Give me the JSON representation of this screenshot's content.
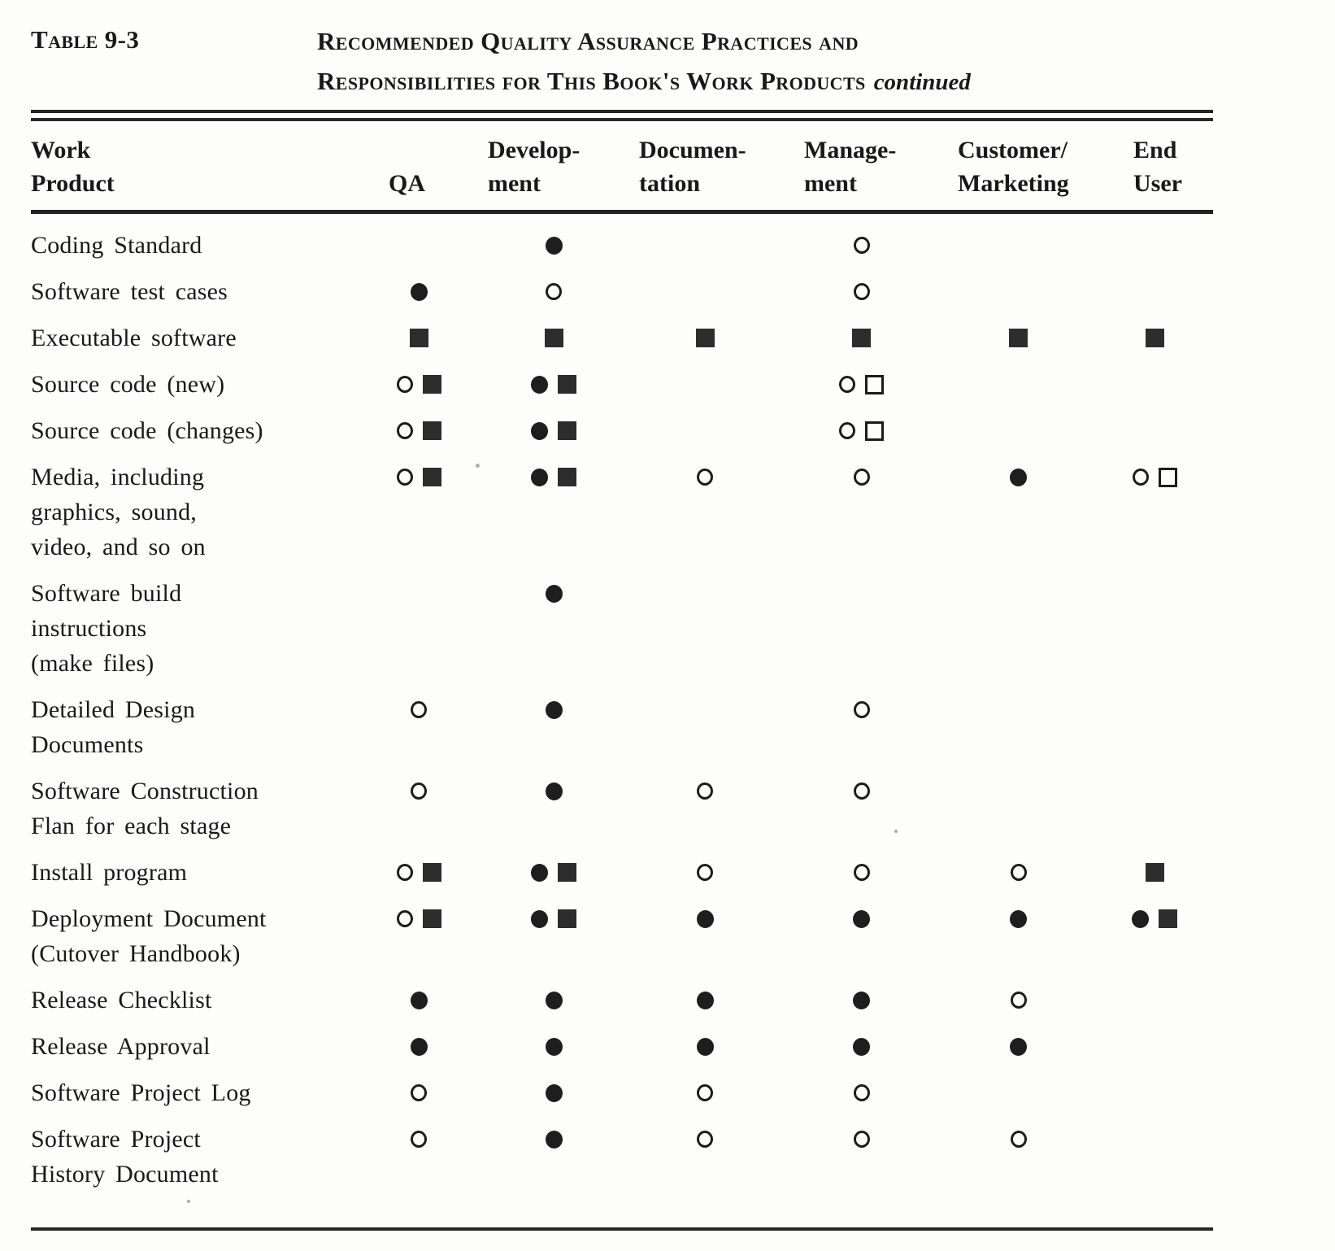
{
  "title": {
    "table_number": "Table 9-3",
    "line1": "Recommended Quality Assurance Practices and",
    "line2": "Responsibilities for This Book's Work Products",
    "continued": "continued"
  },
  "symbol_glyphs": {
    "filled-circle": "●",
    "open-circle": "○",
    "filled-square": "■",
    "open-square": "□"
  },
  "table": {
    "columns": [
      {
        "id": "work_product",
        "label_lines": [
          "Work",
          "Product"
        ]
      },
      {
        "id": "qa",
        "label_lines": [
          "QA"
        ]
      },
      {
        "id": "development",
        "label_lines": [
          "Develop-",
          "ment"
        ]
      },
      {
        "id": "documentation",
        "label_lines": [
          "Documen-",
          "tation"
        ]
      },
      {
        "id": "management",
        "label_lines": [
          "Manage-",
          "ment"
        ]
      },
      {
        "id": "customer_marketing",
        "label_lines": [
          "Customer/",
          "Marketing"
        ]
      },
      {
        "id": "end_user",
        "label_lines": [
          "End",
          "User"
        ]
      }
    ],
    "rows": [
      {
        "label_lines": [
          "Coding Standard"
        ],
        "cells": [
          [],
          [
            "filled-circle"
          ],
          [],
          [
            "open-circle"
          ],
          [],
          []
        ]
      },
      {
        "label_lines": [
          "Software test cases"
        ],
        "cells": [
          [
            "filled-circle"
          ],
          [
            "open-circle"
          ],
          [],
          [
            "open-circle"
          ],
          [],
          []
        ]
      },
      {
        "label_lines": [
          "Executable software"
        ],
        "cells": [
          [
            "filled-square"
          ],
          [
            "filled-square"
          ],
          [
            "filled-square"
          ],
          [
            "filled-square"
          ],
          [
            "filled-square"
          ],
          [
            "filled-square"
          ]
        ]
      },
      {
        "label_lines": [
          "Source code (new)"
        ],
        "cells": [
          [
            "open-circle",
            "filled-square"
          ],
          [
            "filled-circle",
            "filled-square"
          ],
          [],
          [
            "open-circle",
            "open-square"
          ],
          [],
          []
        ]
      },
      {
        "label_lines": [
          "Source code (changes)"
        ],
        "cells": [
          [
            "open-circle",
            "filled-square"
          ],
          [
            "filled-circle",
            "filled-square"
          ],
          [],
          [
            "open-circle",
            "open-square"
          ],
          [],
          []
        ]
      },
      {
        "label_lines": [
          "Media, including",
          "graphics, sound,",
          "video, and so on"
        ],
        "cells": [
          [
            "open-circle",
            "filled-square"
          ],
          [
            "filled-circle",
            "filled-square"
          ],
          [
            "open-circle"
          ],
          [
            "open-circle"
          ],
          [
            "filled-circle"
          ],
          [
            "open-circle",
            "open-square"
          ]
        ]
      },
      {
        "label_lines": [
          "Software build",
          "instructions",
          "(make files)"
        ],
        "cells": [
          [],
          [
            "filled-circle"
          ],
          [],
          [],
          [],
          []
        ]
      },
      {
        "label_lines": [
          "Detailed Design",
          "Documents"
        ],
        "cells": [
          [
            "open-circle"
          ],
          [
            "filled-circle"
          ],
          [],
          [
            "open-circle"
          ],
          [],
          []
        ]
      },
      {
        "label_lines": [
          "Software Construction",
          "Flan for each stage"
        ],
        "cells": [
          [
            "open-circle"
          ],
          [
            "filled-circle"
          ],
          [
            "open-circle"
          ],
          [
            "open-circle"
          ],
          [],
          []
        ]
      },
      {
        "label_lines": [
          "Install program"
        ],
        "cells": [
          [
            "open-circle",
            "filled-square"
          ],
          [
            "filled-circle",
            "filled-square"
          ],
          [
            "open-circle"
          ],
          [
            "open-circle"
          ],
          [
            "open-circle"
          ],
          [
            "filled-square"
          ]
        ]
      },
      {
        "label_lines": [
          "Deployment Document",
          "(Cutover Handbook)"
        ],
        "cells": [
          [
            "open-circle",
            "filled-square"
          ],
          [
            "filled-circle",
            "filled-square"
          ],
          [
            "filled-circle"
          ],
          [
            "filled-circle"
          ],
          [
            "filled-circle"
          ],
          [
            "filled-circle",
            "filled-square"
          ]
        ]
      },
      {
        "label_lines": [
          "Release Checklist"
        ],
        "cells": [
          [
            "filled-circle"
          ],
          [
            "filled-circle"
          ],
          [
            "filled-circle"
          ],
          [
            "filled-circle"
          ],
          [
            "open-circle"
          ],
          []
        ]
      },
      {
        "label_lines": [
          "Release Approval"
        ],
        "cells": [
          [
            "filled-circle"
          ],
          [
            "filled-circle"
          ],
          [
            "filled-circle"
          ],
          [
            "filled-circle"
          ],
          [
            "filled-circle"
          ],
          []
        ]
      },
      {
        "label_lines": [
          "Software Project Log"
        ],
        "cells": [
          [
            "open-circle"
          ],
          [
            "filled-circle"
          ],
          [
            "open-circle"
          ],
          [
            "open-circle"
          ],
          [],
          []
        ]
      },
      {
        "label_lines": [
          "Software Project",
          "History Document"
        ],
        "cells": [
          [
            "open-circle"
          ],
          [
            "filled-circle"
          ],
          [
            "open-circle"
          ],
          [
            "open-circle"
          ],
          [
            "open-circle"
          ],
          []
        ]
      }
    ]
  }
}
